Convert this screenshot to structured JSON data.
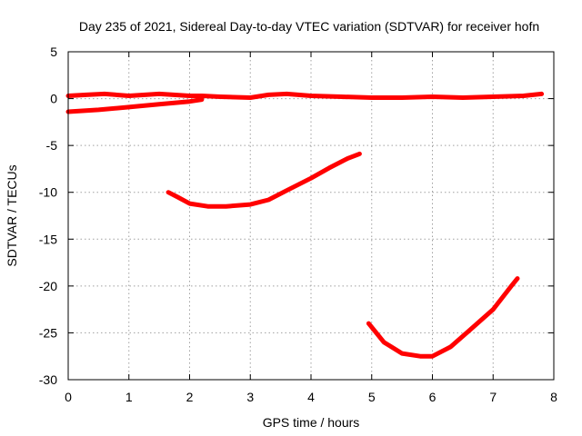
{
  "chart_data": {
    "type": "line",
    "title": "Day 235 of 2021, Sidereal Day-to-day VTEC variation (SDTVAR) for receiver hofn",
    "xlabel": "GPS time / hours",
    "ylabel": "SDTVAR / TECUs",
    "xlim": [
      0,
      8
    ],
    "ylim": [
      -30,
      5
    ],
    "xticks": [
      0,
      1,
      2,
      3,
      4,
      5,
      6,
      7,
      8
    ],
    "yticks": [
      5,
      0,
      -5,
      -10,
      -15,
      -20,
      -25,
      -30
    ],
    "grid": true,
    "legend": "none",
    "color": "#ff0000",
    "series": [
      {
        "name": "trace-near-zero-upper",
        "x": [
          0.0,
          0.3,
          0.6,
          1.0,
          1.5,
          2.0,
          2.2,
          2.5,
          3.0,
          3.3,
          3.6,
          4.0,
          4.5,
          5.0,
          5.5,
          6.0,
          6.5,
          7.0,
          7.5,
          7.8
        ],
        "y": [
          0.3,
          0.4,
          0.5,
          0.3,
          0.5,
          0.3,
          0.3,
          0.2,
          0.1,
          0.4,
          0.5,
          0.3,
          0.2,
          0.1,
          0.1,
          0.2,
          0.1,
          0.2,
          0.3,
          0.5
        ]
      },
      {
        "name": "trace-near-zero-lower",
        "x": [
          0.0,
          0.5,
          1.0,
          1.5,
          2.0,
          2.2
        ],
        "y": [
          -1.4,
          -1.2,
          -0.9,
          -0.6,
          -0.3,
          -0.1
        ]
      },
      {
        "name": "trace-mid",
        "x": [
          1.65,
          1.8,
          2.0,
          2.3,
          2.6,
          3.0,
          3.3,
          3.6,
          4.0,
          4.3,
          4.6,
          4.8
        ],
        "y": [
          -10.0,
          -10.5,
          -11.2,
          -11.5,
          -11.5,
          -11.3,
          -10.8,
          -9.8,
          -8.5,
          -7.4,
          -6.4,
          -5.9
        ]
      },
      {
        "name": "trace-low",
        "x": [
          4.95,
          5.2,
          5.5,
          5.8,
          6.0,
          6.3,
          6.6,
          7.0,
          7.3,
          7.4
        ],
        "y": [
          -24.0,
          -26.0,
          -27.2,
          -27.5,
          -27.5,
          -26.5,
          -24.8,
          -22.5,
          -20.0,
          -19.2
        ]
      }
    ]
  }
}
